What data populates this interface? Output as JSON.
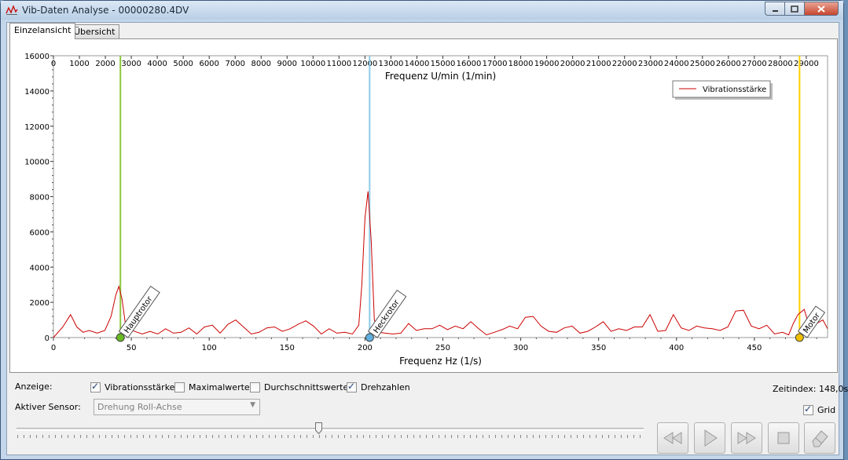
{
  "window": {
    "title": "Vib-Daten Analyse - 00000280.4DV"
  },
  "tabs": [
    {
      "label": "Einzelansicht"
    },
    {
      "label": "Übersicht"
    }
  ],
  "chart_data": {
    "type": "line",
    "xlabel": "Frequenz Hz (1/s)",
    "x2label": "Frequenz U/min (1/min)",
    "xlim": [
      0,
      497
    ],
    "x2lim": [
      0,
      29820
    ],
    "ylim": [
      0,
      16000
    ],
    "xticks": [
      0,
      50,
      100,
      150,
      200,
      250,
      300,
      350,
      400,
      450
    ],
    "x2ticks": [
      0,
      1000,
      2000,
      3000,
      4000,
      5000,
      6000,
      7000,
      8000,
      9000,
      10000,
      11000,
      12000,
      13000,
      14000,
      15000,
      16000,
      17000,
      18000,
      19000,
      20000,
      21000,
      22000,
      23000,
      24000,
      25000,
      26000,
      27000,
      28000,
      29000
    ],
    "yticks": [
      0,
      2000,
      4000,
      6000,
      8000,
      10000,
      12000,
      14000,
      16000
    ],
    "grid": true,
    "legend_position": "top-right",
    "series": [
      {
        "name": "Vibrationsstärke",
        "color": "#cc0000",
        "x": [
          0,
          6,
          11,
          15,
          19,
          23,
          28,
          33,
          37,
          40,
          42,
          44,
          46,
          49,
          52,
          57,
          62,
          67,
          72,
          77,
          82,
          87,
          92,
          97,
          102,
          107,
          112,
          117,
          122,
          127,
          132,
          137,
          142,
          147,
          152,
          157,
          162,
          167,
          172,
          177,
          182,
          187,
          192,
          196,
          198,
          200,
          202,
          204,
          206,
          209,
          213,
          218,
          223,
          228,
          233,
          238,
          243,
          248,
          253,
          258,
          263,
          268,
          273,
          278,
          283,
          288,
          293,
          298,
          303,
          308,
          313,
          318,
          323,
          328,
          333,
          338,
          343,
          348,
          353,
          358,
          363,
          368,
          373,
          378,
          383,
          388,
          393,
          398,
          403,
          408,
          413,
          418,
          423,
          428,
          433,
          438,
          443,
          448,
          453,
          458,
          463,
          468,
          472,
          475,
          478,
          482,
          486,
          490,
          494,
          497
        ],
        "y": [
          0,
          600,
          1300,
          600,
          300,
          400,
          250,
          400,
          1200,
          2400,
          2900,
          2200,
          900,
          500,
          350,
          200,
          350,
          200,
          500,
          250,
          300,
          550,
          200,
          600,
          700,
          250,
          750,
          1000,
          600,
          200,
          300,
          550,
          600,
          350,
          500,
          750,
          950,
          650,
          200,
          500,
          250,
          300,
          200,
          700,
          3000,
          6800,
          8300,
          5500,
          1000,
          300,
          250,
          200,
          250,
          800,
          400,
          500,
          500,
          700,
          450,
          650,
          500,
          900,
          500,
          150,
          300,
          450,
          650,
          500,
          1150,
          1200,
          650,
          350,
          300,
          550,
          650,
          250,
          350,
          600,
          900,
          350,
          500,
          400,
          600,
          600,
          1300,
          350,
          400,
          1300,
          550,
          400,
          650,
          550,
          500,
          400,
          600,
          1500,
          1550,
          650,
          500,
          700,
          200,
          300,
          150,
          800,
          1300,
          1600,
          400,
          800,
          1000,
          500
        ]
      }
    ],
    "markers": [
      {
        "label": "Hauptrotor",
        "x": 43,
        "color": "#8dc63f",
        "dot": "#66bb22"
      },
      {
        "label": "Heckrotor",
        "x": 203,
        "color": "#8ecae6",
        "dot": "#5fb0e0"
      },
      {
        "label": "Motor",
        "x": 479,
        "color": "#ffd000",
        "dot": "#f0c000"
      }
    ]
  },
  "controls": {
    "anzeige_label": "Anzeige:",
    "checkboxes": [
      {
        "label": "Vibrationsstärke",
        "checked": true
      },
      {
        "label": "Maximalwerte",
        "checked": false
      },
      {
        "label": "Durchschnittswerte",
        "checked": false
      },
      {
        "label": "Drehzahlen",
        "checked": true
      }
    ],
    "sensor_label": "Aktiver Sensor:",
    "sensor_value": "Drehung Roll-Achse",
    "zeitindex": "Zeitindex: 148,0s",
    "grid_label": "Grid",
    "grid_checked": true,
    "slider_position": 0.48
  },
  "colors": {
    "accent": "#cc0000",
    "window_frame": "#c4d6ea"
  }
}
